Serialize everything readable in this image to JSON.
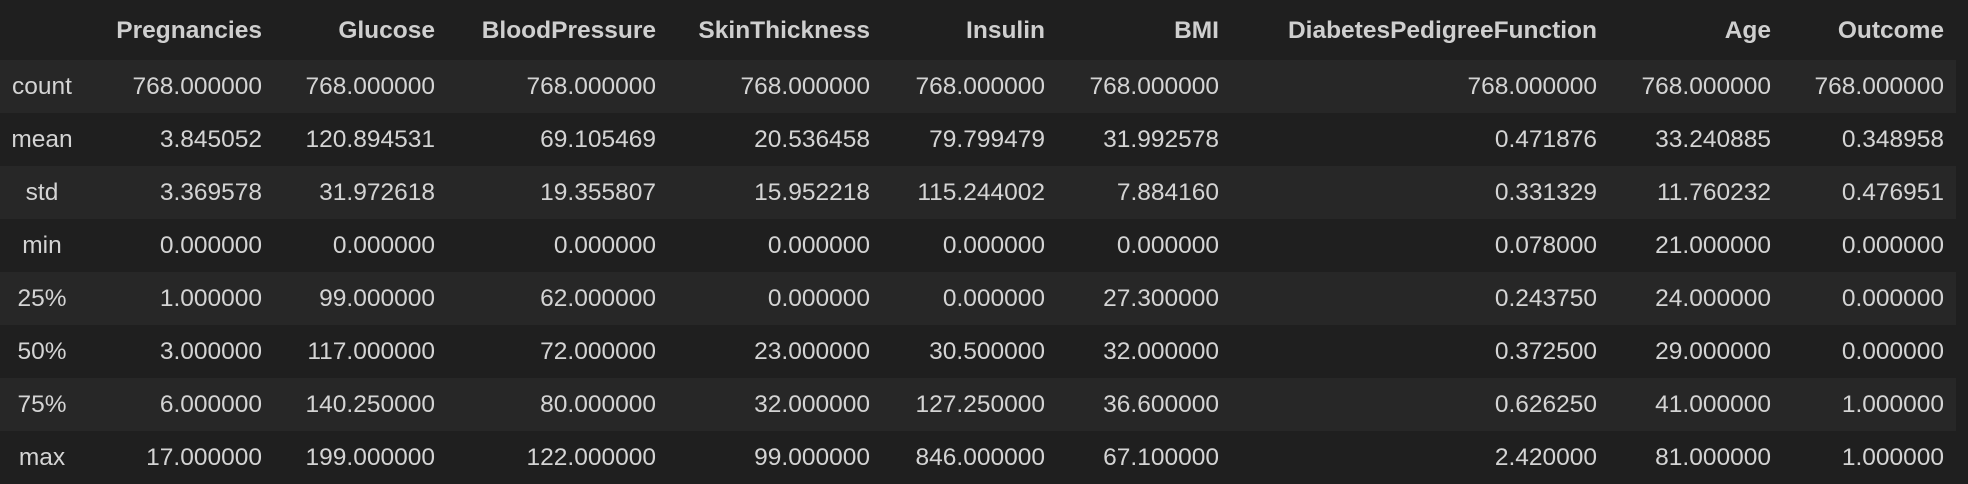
{
  "table": {
    "corner": "",
    "columns": [
      "Pregnancies",
      "Glucose",
      "BloodPressure",
      "SkinThickness",
      "Insulin",
      "BMI",
      "DiabetesPedigreeFunction",
      "Age",
      "Outcome"
    ],
    "rows": [
      {
        "label": "count",
        "values": [
          "768.000000",
          "768.000000",
          "768.000000",
          "768.000000",
          "768.000000",
          "768.000000",
          "768.000000",
          "768.000000",
          "768.000000"
        ]
      },
      {
        "label": "mean",
        "values": [
          "3.845052",
          "120.894531",
          "69.105469",
          "20.536458",
          "79.799479",
          "31.992578",
          "0.471876",
          "33.240885",
          "0.348958"
        ]
      },
      {
        "label": "std",
        "values": [
          "3.369578",
          "31.972618",
          "19.355807",
          "15.952218",
          "115.244002",
          "7.884160",
          "0.331329",
          "11.760232",
          "0.476951"
        ]
      },
      {
        "label": "min",
        "values": [
          "0.000000",
          "0.000000",
          "0.000000",
          "0.000000",
          "0.000000",
          "0.000000",
          "0.078000",
          "21.000000",
          "0.000000"
        ]
      },
      {
        "label": "25%",
        "values": [
          "1.000000",
          "99.000000",
          "62.000000",
          "0.000000",
          "0.000000",
          "27.300000",
          "0.243750",
          "24.000000",
          "0.000000"
        ]
      },
      {
        "label": "50%",
        "values": [
          "3.000000",
          "117.000000",
          "72.000000",
          "23.000000",
          "30.500000",
          "32.000000",
          "0.372500",
          "29.000000",
          "0.000000"
        ]
      },
      {
        "label": "75%",
        "values": [
          "6.000000",
          "140.250000",
          "80.000000",
          "32.000000",
          "127.250000",
          "36.600000",
          "0.626250",
          "41.000000",
          "1.000000"
        ]
      },
      {
        "label": "max",
        "values": [
          "17.000000",
          "199.000000",
          "122.000000",
          "99.000000",
          "846.000000",
          "67.100000",
          "2.420000",
          "81.000000",
          "1.000000"
        ]
      }
    ]
  }
}
